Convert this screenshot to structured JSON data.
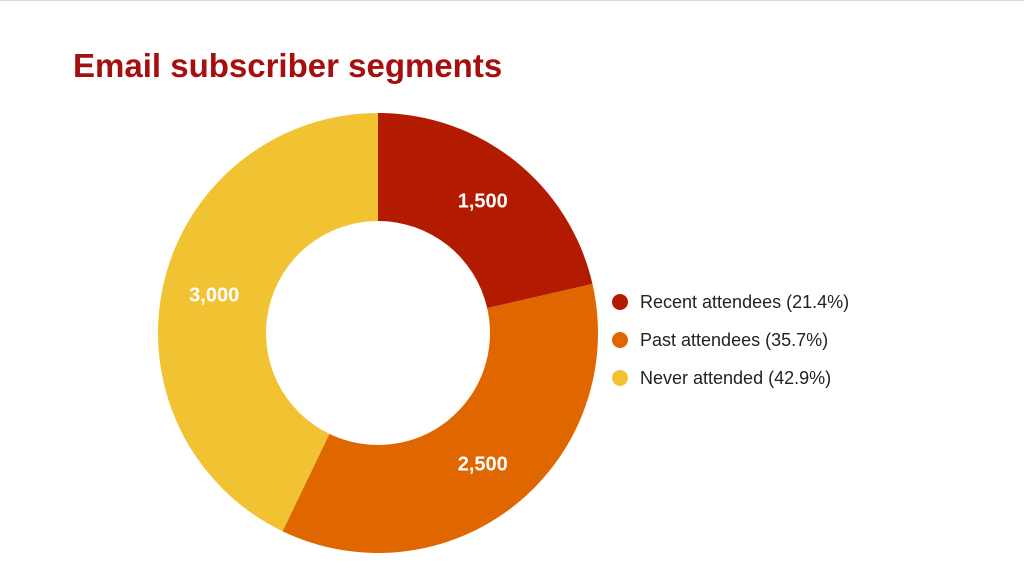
{
  "chart_data": {
    "type": "pie",
    "donut": true,
    "title": "Email subscriber segments",
    "title_color": "#a50f0f",
    "legend_position": "right",
    "slices": [
      {
        "name": "Recent attendees (21.4%)",
        "value": 1500,
        "label": "1,500",
        "color": "#b31b00"
      },
      {
        "name": "Past attendees (35.7%)",
        "value": 2500,
        "label": "2,500",
        "color": "#e06600"
      },
      {
        "name": "Never attended (42.9%)",
        "value": 3000,
        "label": "3,000",
        "color": "#f1c232"
      }
    ]
  }
}
